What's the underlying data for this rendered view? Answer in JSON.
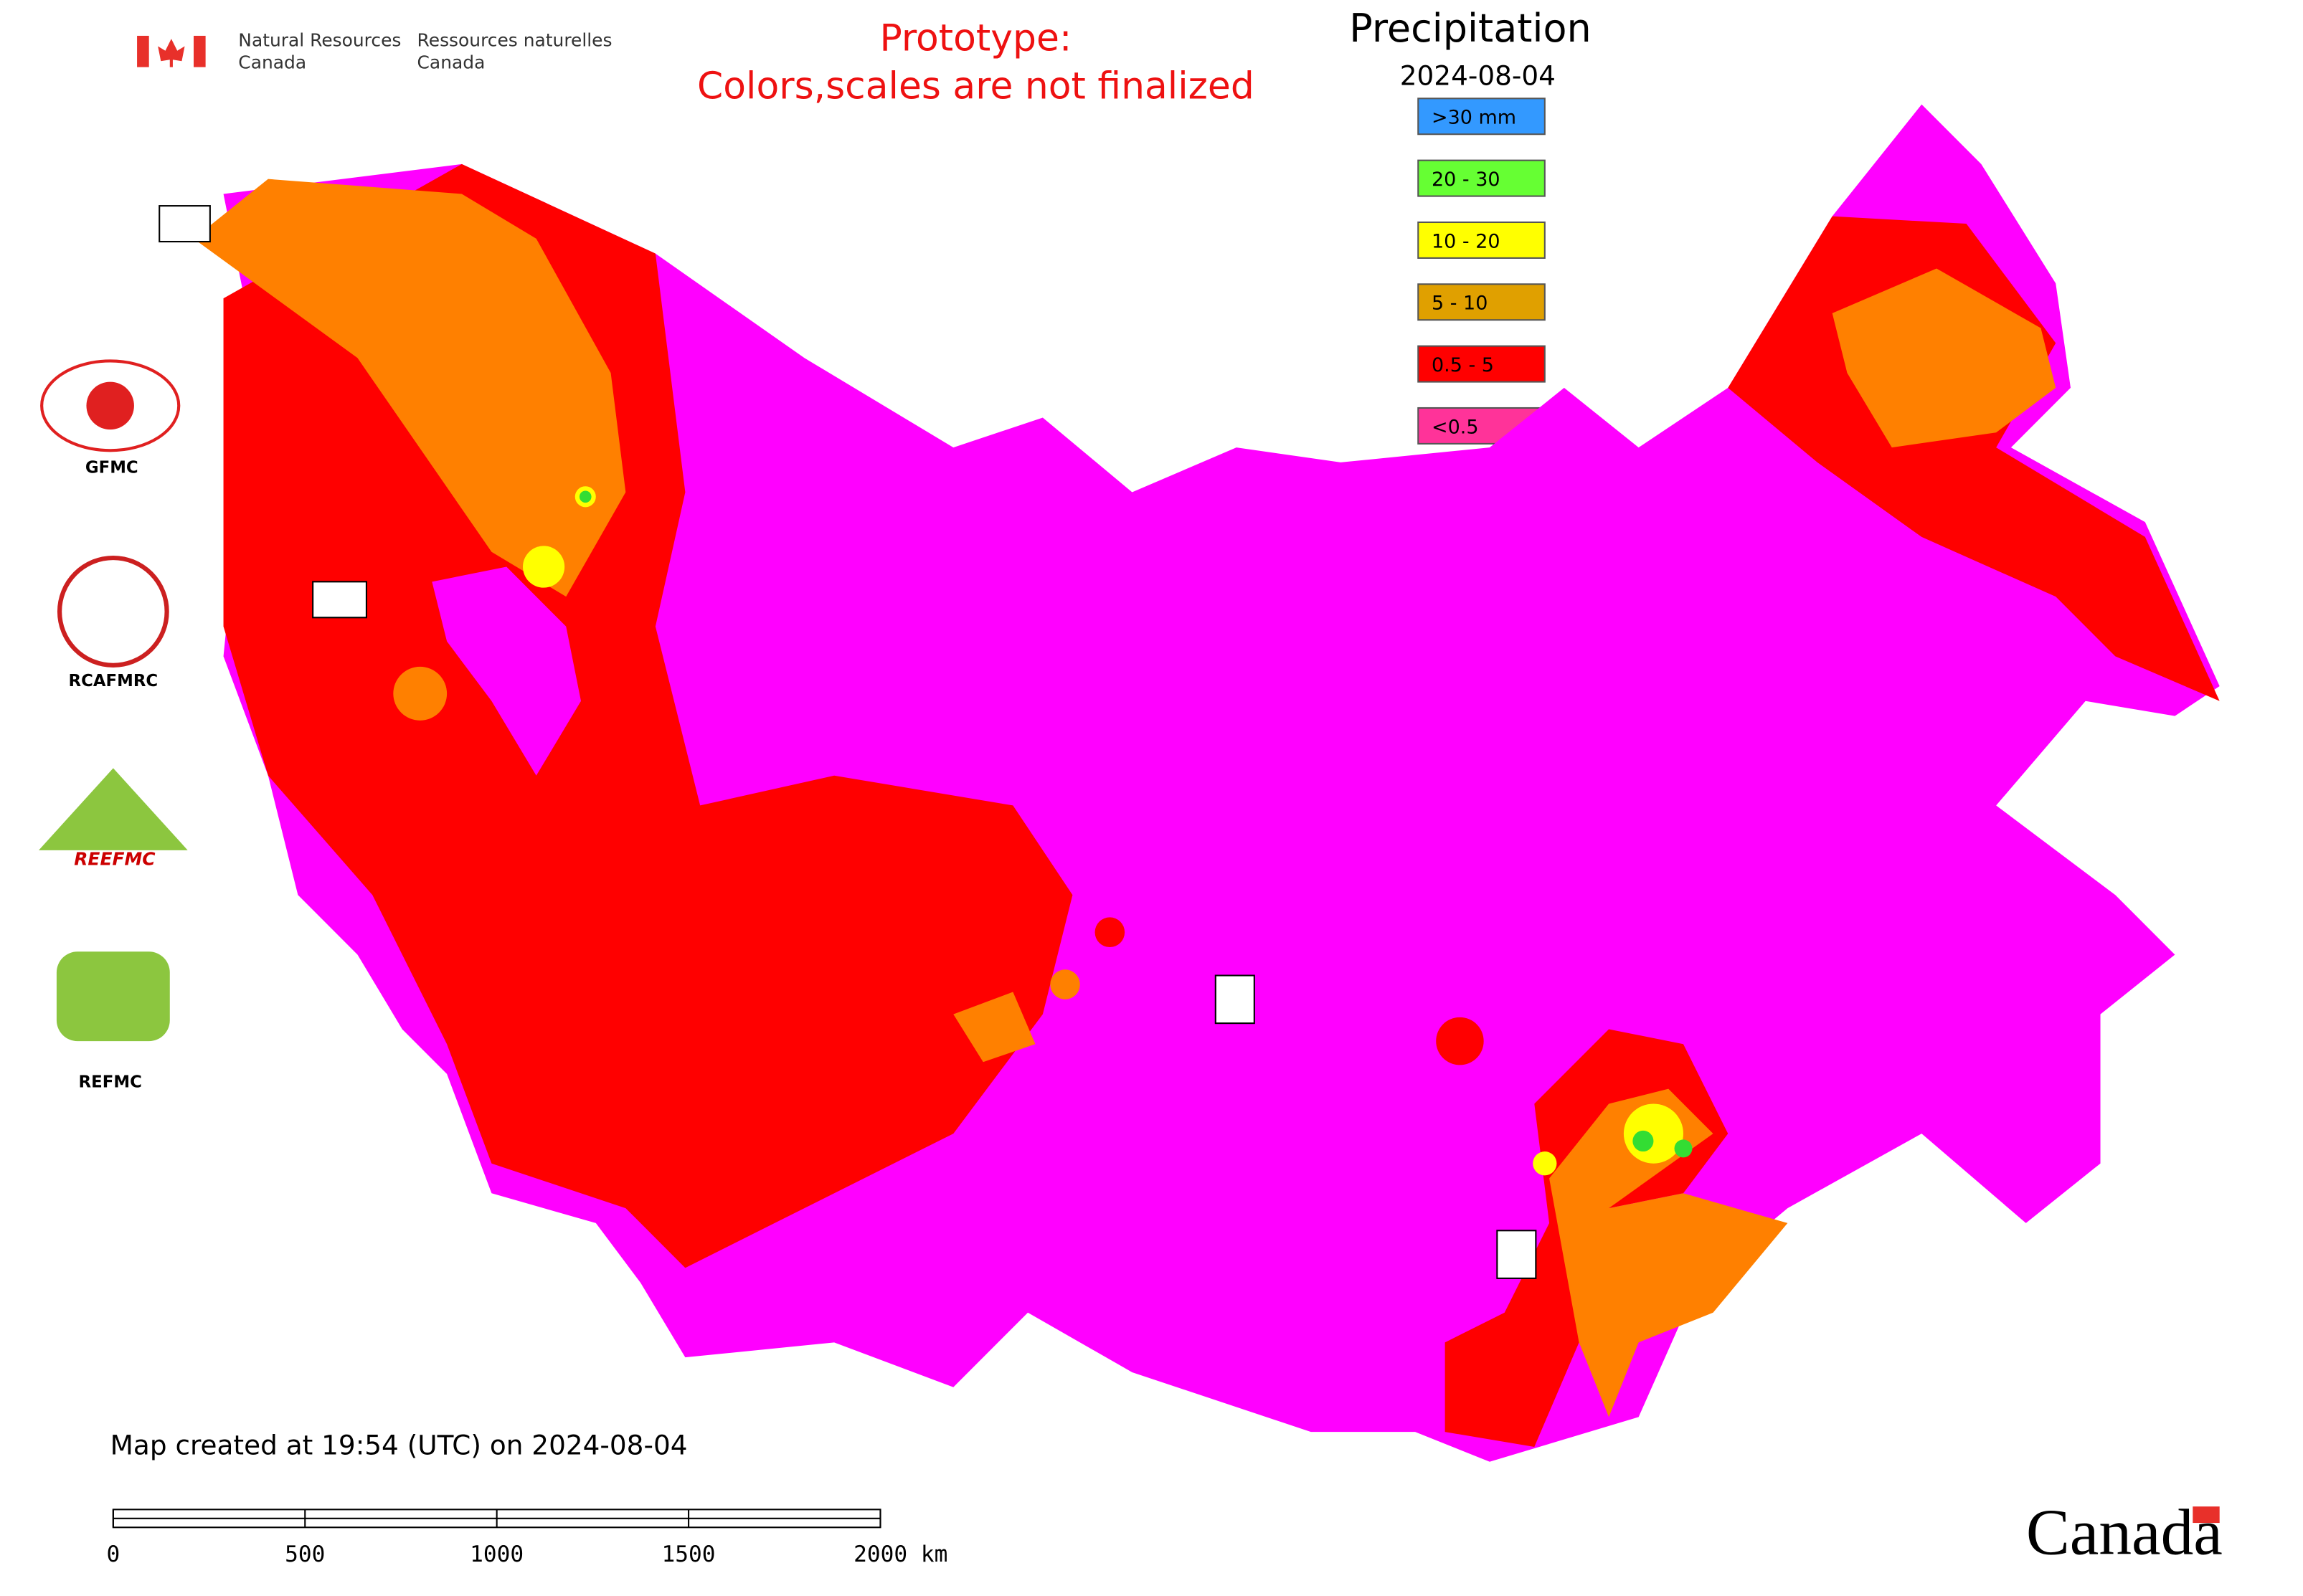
{
  "header": {
    "agency_en": [
      "Natural Resources",
      "Canada"
    ],
    "agency_fr": [
      "Ressources naturelles",
      "Canada"
    ],
    "notice": [
      "Prototype:",
      "Colors,scales are not finalized"
    ],
    "title": "Precipitation",
    "date": "2024-08-04"
  },
  "legend": [
    {
      "label": ">30 mm",
      "color": "#3399ff"
    },
    {
      "label": "20 - 30",
      "color": "#66ff33"
    },
    {
      "label": "10 - 20",
      "color": "#ffff00"
    },
    {
      "label": "5 - 10",
      "color": "#e0a000"
    },
    {
      "label": "0.5 - 5",
      "color": "#ff0000"
    },
    {
      "label": "<0.5",
      "color": "#ff3399"
    }
  ],
  "logos": [
    "GFMC",
    "RCAFMRC",
    "REEFMC",
    "REFMC"
  ],
  "footer": {
    "created": "Map created at 19:54 (UTC) on 2024-08-04",
    "wordmark": "Canada"
  },
  "scale_bar": {
    "labels": [
      "0",
      "500",
      "1000",
      "1500",
      "2000 km"
    ]
  }
}
